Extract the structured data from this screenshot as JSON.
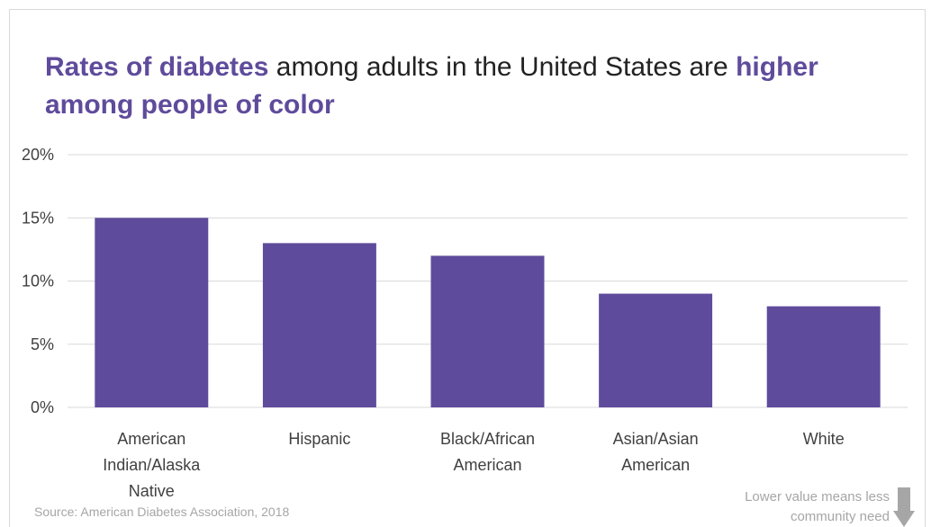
{
  "title": {
    "part1": "Rates of diabetes",
    "part2": " among adults in the United States are ",
    "part3": "higher",
    "part4": "among people of color"
  },
  "source": "Source: American Diabetes Association, 2018",
  "note": "Lower value means less community need",
  "note_icon": "down-arrow-icon",
  "colors": {
    "bar": "#5f4b9b",
    "title_highlight": "#5f4b9b",
    "gridline": "#d9d9d9",
    "axis_text": "#404040",
    "muted_text": "#a6a6a6"
  },
  "chart_data": {
    "type": "bar",
    "categories": [
      "American Indian/Alaska Native",
      "Hispanic",
      "Black/African American",
      "Asian/Asian American",
      "White"
    ],
    "category_lines": [
      [
        "American",
        "Indian/Alaska",
        "Native"
      ],
      [
        "Hispanic"
      ],
      [
        "Black/African",
        "American"
      ],
      [
        "Asian/Asian",
        "American"
      ],
      [
        "White"
      ]
    ],
    "values": [
      15,
      13,
      12,
      9,
      8
    ],
    "ylim": [
      0,
      20
    ],
    "yticks": [
      0,
      5,
      10,
      15,
      20
    ],
    "ytick_labels": [
      "0%",
      "5%",
      "10%",
      "15%",
      "20%"
    ],
    "grid": true,
    "xlabel": "",
    "ylabel": ""
  }
}
